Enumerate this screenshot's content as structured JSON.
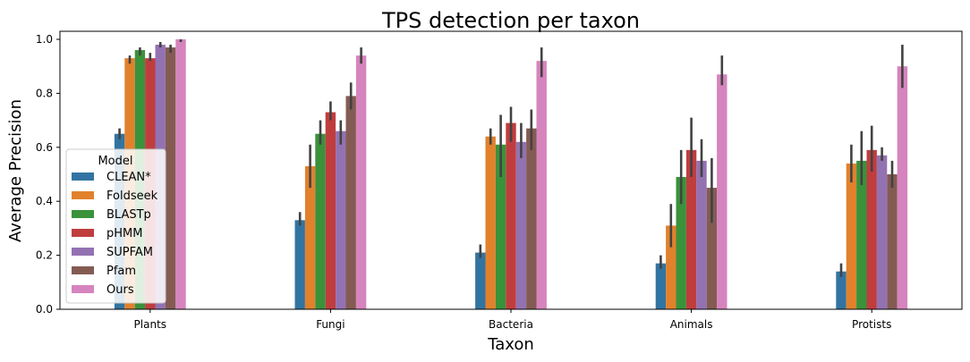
{
  "chart_data": {
    "type": "bar",
    "title": "TPS detection per taxon",
    "xlabel": "Taxon",
    "ylabel": "Average Precision",
    "ylim": [
      0.0,
      1.0
    ],
    "yticks": [
      "0.0",
      "0.2",
      "0.4",
      "0.6",
      "0.8",
      "1.0"
    ],
    "categories": [
      "Plants",
      "Fungi",
      "Bacteria",
      "Animals",
      "Protists"
    ],
    "legend": {
      "title": "Model",
      "placement": "center-left"
    },
    "series": [
      {
        "name": "CLEAN*",
        "color": "#3274a1",
        "values": [
          0.65,
          0.33,
          0.21,
          0.17,
          0.14
        ],
        "err_low": [
          0.63,
          0.31,
          0.19,
          0.15,
          0.12
        ],
        "err_high": [
          0.67,
          0.36,
          0.24,
          0.2,
          0.17
        ]
      },
      {
        "name": "Foldseek",
        "color": "#e1812c",
        "values": [
          0.93,
          0.53,
          0.64,
          0.31,
          0.54
        ],
        "err_low": [
          0.91,
          0.45,
          0.61,
          0.23,
          0.47
        ],
        "err_high": [
          0.94,
          0.61,
          0.67,
          0.39,
          0.61
        ]
      },
      {
        "name": "BLASTp",
        "color": "#3a923a",
        "values": [
          0.96,
          0.65,
          0.61,
          0.49,
          0.55
        ],
        "err_low": [
          0.94,
          0.61,
          0.49,
          0.39,
          0.46
        ],
        "err_high": [
          0.97,
          0.7,
          0.72,
          0.59,
          0.66
        ]
      },
      {
        "name": "pHMM",
        "color": "#c03d3e",
        "values": [
          0.93,
          0.73,
          0.69,
          0.59,
          0.59
        ],
        "err_low": [
          0.92,
          0.7,
          0.62,
          0.49,
          0.51
        ],
        "err_high": [
          0.95,
          0.77,
          0.75,
          0.71,
          0.68
        ]
      },
      {
        "name": "SUPFAM",
        "color": "#9372b2",
        "values": [
          0.98,
          0.66,
          0.62,
          0.55,
          0.57
        ],
        "err_low": [
          0.97,
          0.61,
          0.56,
          0.49,
          0.55
        ],
        "err_high": [
          0.99,
          0.7,
          0.69,
          0.63,
          0.6
        ]
      },
      {
        "name": "Pfam",
        "color": "#845b53",
        "values": [
          0.97,
          0.79,
          0.67,
          0.45,
          0.5
        ],
        "err_low": [
          0.95,
          0.74,
          0.59,
          0.32,
          0.45
        ],
        "err_high": [
          0.98,
          0.84,
          0.74,
          0.56,
          0.55
        ]
      },
      {
        "name": "Ours",
        "color": "#d684bd",
        "values": [
          1.0,
          0.94,
          0.92,
          0.87,
          0.9
        ],
        "err_low": [
          0.99,
          0.91,
          0.86,
          0.83,
          0.82
        ],
        "err_high": [
          1.0,
          0.97,
          0.97,
          0.94,
          0.98
        ]
      }
    ]
  }
}
